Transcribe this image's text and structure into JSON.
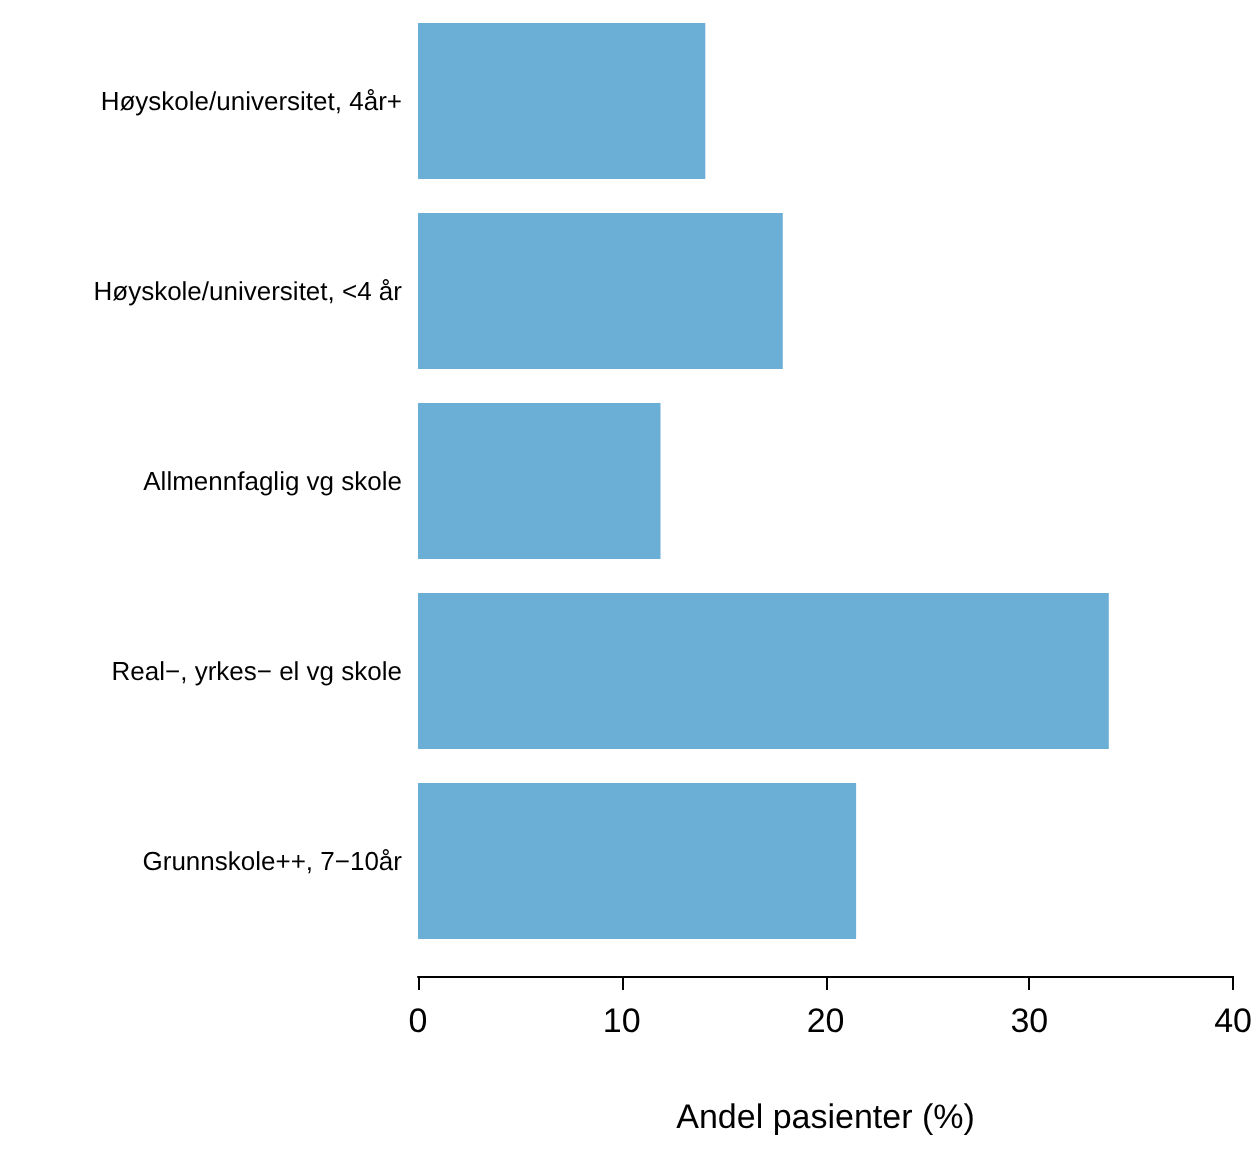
{
  "chart_data": {
    "type": "bar",
    "orientation": "horizontal",
    "xlabel": "Andel pasienter (%)",
    "categories": [
      "Høyskole/universitet, 4år+",
      "Høyskole/universitet, <4 år",
      "Allmennfaglig vg skole",
      "Real−, yrkes− el vg skole",
      "Grunnskole++, 7−10år"
    ],
    "values": [
      14.1,
      17.9,
      11.9,
      33.9,
      21.5
    ],
    "color": "#6baed6",
    "xlim": [
      0,
      40
    ],
    "xticks": [
      0,
      10,
      20,
      30,
      40
    ],
    "grid": false
  }
}
